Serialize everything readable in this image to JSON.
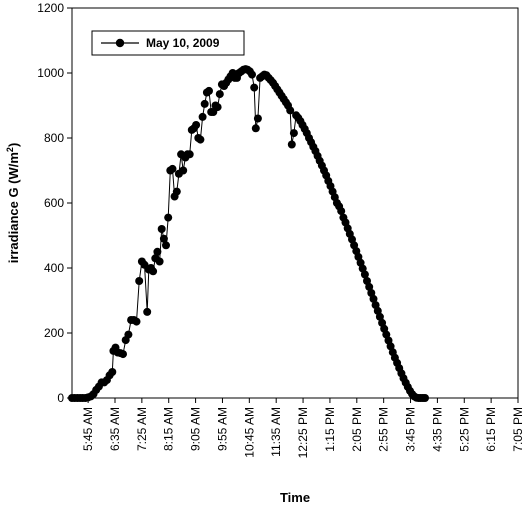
{
  "chart_data": {
    "type": "line",
    "title": "",
    "xlabel": "Time",
    "ylabel": "irradiance  G (W/m²)",
    "ylabel_main": "irradiance  G (W/m",
    "ylabel_sup": "2",
    "ylabel_end": ")",
    "ylim": [
      0,
      1200
    ],
    "yticks": [
      0,
      200,
      400,
      600,
      800,
      1000,
      1200
    ],
    "xlim_minutes": [
      315,
      1145
    ],
    "xticks": [
      {
        "label": "5:45 AM",
        "minutes": 345
      },
      {
        "label": "6:35 AM",
        "minutes": 395
      },
      {
        "label": "7:25 AM",
        "minutes": 445
      },
      {
        "label": "8:15 AM",
        "minutes": 495
      },
      {
        "label": "9:05 AM",
        "minutes": 545
      },
      {
        "label": "9:55 AM",
        "minutes": 595
      },
      {
        "label": "10:45 AM",
        "minutes": 645
      },
      {
        "label": "11:35 AM",
        "minutes": 695
      },
      {
        "label": "12:25 PM",
        "minutes": 745
      },
      {
        "label": "1:15 PM",
        "minutes": 795
      },
      {
        "label": "2:05 PM",
        "minutes": 845
      },
      {
        "label": "2:55 PM",
        "minutes": 895
      },
      {
        "label": "3:45 PM",
        "minutes": 945
      },
      {
        "label": "4:35 PM",
        "minutes": 995
      },
      {
        "label": "5:25 PM",
        "minutes": 1045
      },
      {
        "label": "6:15 PM",
        "minutes": 1095
      },
      {
        "label": "7:05 PM",
        "minutes": 1145
      }
    ],
    "grid": false,
    "legend_position": "top-left",
    "series": [
      {
        "name": "May 10, 2009",
        "color": "#000000",
        "marker": "circle",
        "points": [
          [
            315,
            0
          ],
          [
            320,
            0
          ],
          [
            325,
            0
          ],
          [
            330,
            0
          ],
          [
            335,
            0
          ],
          [
            340,
            0
          ],
          [
            345,
            2
          ],
          [
            350,
            5
          ],
          [
            355,
            12
          ],
          [
            360,
            25
          ],
          [
            365,
            35
          ],
          [
            370,
            48
          ],
          [
            375,
            48
          ],
          [
            380,
            55
          ],
          [
            385,
            70
          ],
          [
            390,
            80
          ],
          [
            392,
            145
          ],
          [
            396,
            155
          ],
          [
            400,
            140
          ],
          [
            405,
            138
          ],
          [
            410,
            135
          ],
          [
            415,
            178
          ],
          [
            420,
            195
          ],
          [
            425,
            240
          ],
          [
            430,
            240
          ],
          [
            435,
            235
          ],
          [
            440,
            360
          ],
          [
            445,
            420
          ],
          [
            450,
            410
          ],
          [
            455,
            265
          ],
          [
            458,
            395
          ],
          [
            462,
            400
          ],
          [
            466,
            390
          ],
          [
            470,
            430
          ],
          [
            474,
            450
          ],
          [
            478,
            420
          ],
          [
            482,
            520
          ],
          [
            486,
            490
          ],
          [
            490,
            470
          ],
          [
            494,
            555
          ],
          [
            498,
            700
          ],
          [
            502,
            705
          ],
          [
            506,
            620
          ],
          [
            510,
            635
          ],
          [
            514,
            690
          ],
          [
            518,
            750
          ],
          [
            522,
            700
          ],
          [
            526,
            740
          ],
          [
            530,
            750
          ],
          [
            534,
            750
          ],
          [
            538,
            825
          ],
          [
            542,
            830
          ],
          [
            546,
            840
          ],
          [
            550,
            800
          ],
          [
            554,
            795
          ],
          [
            558,
            865
          ],
          [
            562,
            905
          ],
          [
            566,
            940
          ],
          [
            570,
            945
          ],
          [
            574,
            880
          ],
          [
            578,
            880
          ],
          [
            582,
            900
          ],
          [
            586,
            895
          ],
          [
            590,
            935
          ],
          [
            594,
            965
          ],
          [
            598,
            960
          ],
          [
            602,
            970
          ],
          [
            606,
            980
          ],
          [
            610,
            990
          ],
          [
            614,
            1000
          ],
          [
            618,
            985
          ],
          [
            622,
            985
          ],
          [
            626,
            1000
          ],
          [
            630,
            1005
          ],
          [
            634,
            1010
          ],
          [
            638,
            1012
          ],
          [
            642,
            1010
          ],
          [
            646,
            1005
          ],
          [
            650,
            995
          ],
          [
            654,
            955
          ],
          [
            657,
            830
          ],
          [
            661,
            860
          ],
          [
            665,
            985
          ],
          [
            669,
            990
          ],
          [
            673,
            995
          ],
          [
            677,
            993
          ],
          [
            681,
            985
          ],
          [
            685,
            978
          ],
          [
            689,
            970
          ],
          [
            693,
            960
          ],
          [
            697,
            950
          ],
          [
            701,
            940
          ],
          [
            705,
            930
          ],
          [
            709,
            920
          ],
          [
            713,
            910
          ],
          [
            717,
            900
          ],
          [
            721,
            885
          ],
          [
            724,
            780
          ],
          [
            728,
            815
          ],
          [
            732,
            870
          ],
          [
            736,
            862
          ],
          [
            740,
            852
          ],
          [
            744,
            840
          ],
          [
            748,
            828
          ],
          [
            752,
            815
          ],
          [
            756,
            800
          ],
          [
            760,
            787
          ],
          [
            764,
            773
          ],
          [
            768,
            760
          ],
          [
            772,
            745
          ],
          [
            776,
            730
          ],
          [
            780,
            715
          ],
          [
            784,
            700
          ],
          [
            788,
            685
          ],
          [
            792,
            668
          ],
          [
            796,
            652
          ],
          [
            800,
            635
          ],
          [
            804,
            618
          ],
          [
            808,
            600
          ],
          [
            812,
            590
          ],
          [
            816,
            575
          ],
          [
            820,
            555
          ],
          [
            824,
            540
          ],
          [
            828,
            522
          ],
          [
            832,
            505
          ],
          [
            836,
            488
          ],
          [
            840,
            470
          ],
          [
            844,
            452
          ],
          [
            848,
            434
          ],
          [
            852,
            416
          ],
          [
            856,
            398
          ],
          [
            860,
            380
          ],
          [
            864,
            360
          ],
          [
            868,
            342
          ],
          [
            872,
            323
          ],
          [
            876,
            305
          ],
          [
            880,
            286
          ],
          [
            884,
            268
          ],
          [
            888,
            250
          ],
          [
            892,
            231
          ],
          [
            896,
            213
          ],
          [
            900,
            195
          ],
          [
            904,
            177
          ],
          [
            908,
            159
          ],
          [
            912,
            141
          ],
          [
            916,
            124
          ],
          [
            920,
            108
          ],
          [
            924,
            92
          ],
          [
            928,
            76
          ],
          [
            932,
            61
          ],
          [
            936,
            47
          ],
          [
            940,
            34
          ],
          [
            944,
            22
          ],
          [
            948,
            12
          ],
          [
            952,
            5
          ],
          [
            956,
            1
          ],
          [
            960,
            0
          ],
          [
            964,
            0
          ],
          [
            968,
            0
          ],
          [
            972,
            0
          ]
        ]
      }
    ]
  }
}
